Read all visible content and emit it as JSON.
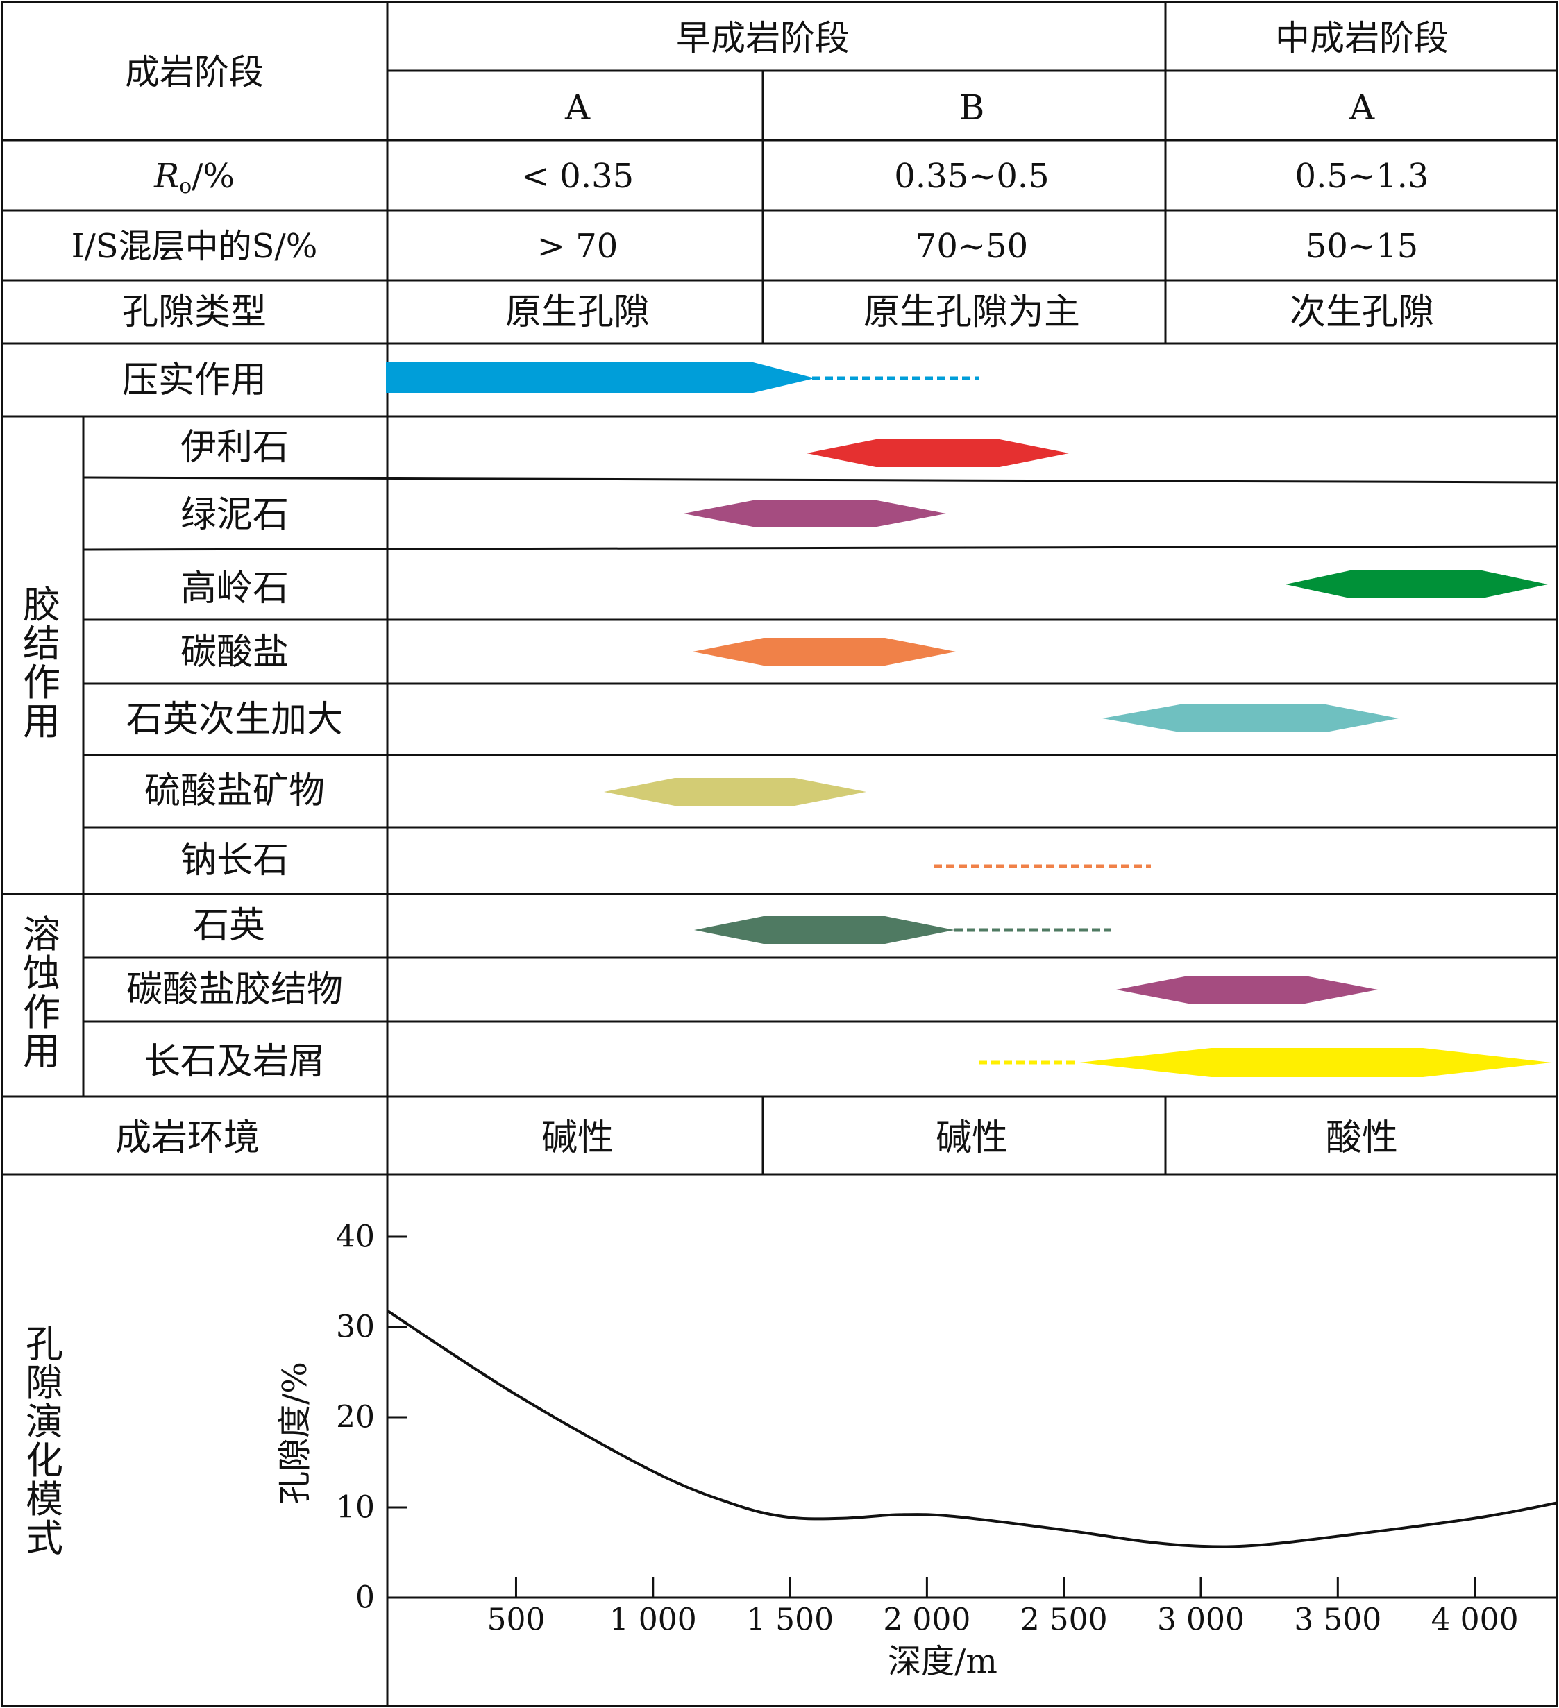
{
  "header": {
    "stage_label": "成岩阶段",
    "early_stage": "早成岩阶段",
    "middle_stage": "中成岩阶段",
    "sub_a1": "A",
    "sub_b": "B",
    "sub_a2": "A"
  },
  "rows": {
    "ro": {
      "label_main": "R",
      "label_sub": "o",
      "label_unit": "/%",
      "values": [
        "< 0.35",
        "0.35~0.5",
        "0.5~1.3"
      ]
    },
    "is": {
      "label": "I/S混层中的S/%",
      "values": [
        "> 70",
        "70~50",
        "50~15"
      ]
    },
    "pore": {
      "label": "孔隙类型",
      "values": [
        "原生孔隙",
        "原生孔隙为主",
        "次生孔隙"
      ]
    },
    "compaction": {
      "label": "压实作用"
    }
  },
  "cementation": {
    "group_label": "胶结作用",
    "items": [
      {
        "label": "伊利石",
        "color": "#E53030"
      },
      {
        "label": "绿泥石",
        "color": "#A54C80"
      },
      {
        "label": "高岭石",
        "color": "#009138"
      },
      {
        "label": "碳酸盐",
        "color": "#F08148"
      },
      {
        "label": "石英次生加大",
        "color": "#6FC0C0"
      },
      {
        "label": "硫酸盐矿物",
        "color": "#D3CC74"
      },
      {
        "label": "钠长石",
        "color": "#F08148"
      }
    ]
  },
  "dissolution": {
    "group_label": "溶蚀作用",
    "items": [
      {
        "label": "石英",
        "color": "#4F7A62"
      },
      {
        "label": "碳酸盐胶结物",
        "color": "#A54C80"
      },
      {
        "label": "长石及岩屑",
        "color": "#FFEF00"
      }
    ]
  },
  "compaction_color": "#009ED9",
  "environment": {
    "label": "成岩环境",
    "values": [
      "碱性",
      "碱性",
      "酸性"
    ]
  },
  "porosity_model": {
    "label": "孔隙演化模式",
    "chart_data": {
      "type": "line",
      "xlabel": "深度/m",
      "ylabel": "孔隙度/%",
      "xlim": [
        30,
        4300
      ],
      "ylim": [
        0,
        40
      ],
      "x_ticks": [
        500,
        1000,
        1500,
        2000,
        2500,
        3000,
        3500,
        4000
      ],
      "x_tick_labels": [
        "500",
        "1 000",
        "1 500",
        "2 000",
        "2 500",
        "3 000",
        "3 500",
        "4 000"
      ],
      "y_ticks": [
        0,
        10,
        20,
        30,
        40
      ],
      "y_tick_labels": [
        "0",
        "10",
        "20",
        "30",
        "40"
      ],
      "x": [
        30,
        500,
        1000,
        1300,
        1500,
        1700,
        1900,
        2100,
        2500,
        2800,
        3000,
        3200,
        3500,
        4000,
        4300
      ],
      "y": [
        31.8,
        22.5,
        14,
        10.3,
        8.9,
        8.8,
        9.2,
        9.0,
        7.5,
        6.2,
        5.7,
        5.8,
        6.8,
        8.8,
        10.5
      ]
    }
  }
}
